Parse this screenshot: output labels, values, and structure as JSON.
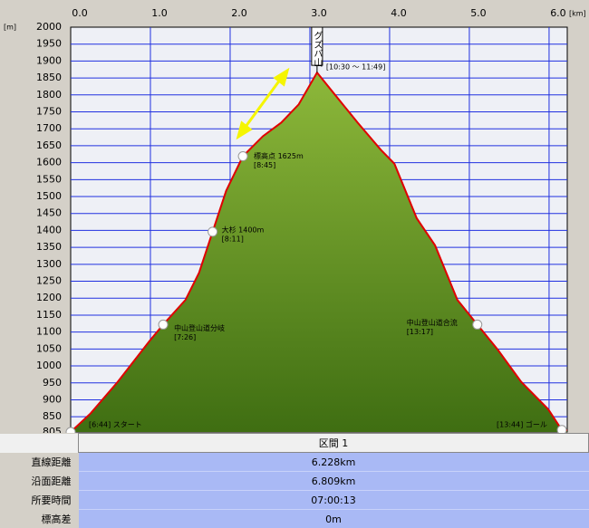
{
  "chart_data": {
    "type": "line",
    "y_unit": "[m]",
    "x_unit": "[km]",
    "xlim": [
      0,
      6.228
    ],
    "ylim": [
      805,
      2000
    ],
    "xticks": [
      {
        "value": 0,
        "label": "0.0"
      },
      {
        "value": 1,
        "label": "1.0"
      },
      {
        "value": 2,
        "label": "2.0"
      },
      {
        "value": 3,
        "label": "3.0"
      },
      {
        "value": 4,
        "label": "4.0"
      },
      {
        "value": 5,
        "label": "5.0"
      },
      {
        "value": 6,
        "label": "6.0"
      }
    ],
    "yticks": [
      805,
      850,
      900,
      950,
      1000,
      1050,
      1100,
      1150,
      1200,
      1250,
      1300,
      1350,
      1400,
      1450,
      1500,
      1550,
      1600,
      1650,
      1700,
      1750,
      1800,
      1850,
      1900,
      1950,
      2000
    ],
    "grid": true,
    "series": [
      {
        "color": "#e00000",
        "x": [
          0,
          0.25,
          0.59,
          0.99,
          1.16,
          1.44,
          1.61,
          1.78,
          1.95,
          2.16,
          2.41,
          2.64,
          2.86,
          3.09,
          3.32,
          3.6,
          3.89,
          4.06,
          4.34,
          4.57,
          4.85,
          5.1,
          5.36,
          5.65,
          5.99,
          6.16,
          6.228
        ],
        "values": [
          805,
          860,
          953,
          1074,
          1122,
          1195,
          1275,
          1396,
          1517,
          1619,
          1678,
          1718,
          1772,
          1866,
          1799,
          1718,
          1638,
          1597,
          1436,
          1356,
          1195,
          1122,
          1047,
          953,
          872,
          811,
          810
        ]
      }
    ],
    "peak": {
      "label": "グズバ山",
      "sub": "[10:30 ～ 11:49]",
      "x": 3.09,
      "y": 1866
    },
    "annotations": [
      {
        "label": "[6:44] スタート",
        "x": 0,
        "y": 805
      },
      {
        "label": "中山登山道分岐",
        "sub": "[7:26]",
        "x": 1.16,
        "y": 1122
      },
      {
        "label": "大杉 1400m",
        "sub": "[8:11]",
        "x": 1.78,
        "y": 1396
      },
      {
        "label": "標高点 1625m",
        "sub": "[8:45]",
        "x": 2.16,
        "y": 1619
      },
      {
        "label": "中山登山道合流",
        "sub": "[13:17]",
        "x": 5.1,
        "y": 1122
      },
      {
        "label": "[13:44] ゴール",
        "x": 6.16,
        "y": 811
      }
    ]
  },
  "table": {
    "header": "区間 1",
    "rows": [
      [
        "直線距離",
        "6.228km"
      ],
      [
        "沿面距離",
        "6.809km"
      ],
      [
        "所要時間",
        "07:00:13"
      ],
      [
        "標高差",
        "0m"
      ]
    ]
  }
}
